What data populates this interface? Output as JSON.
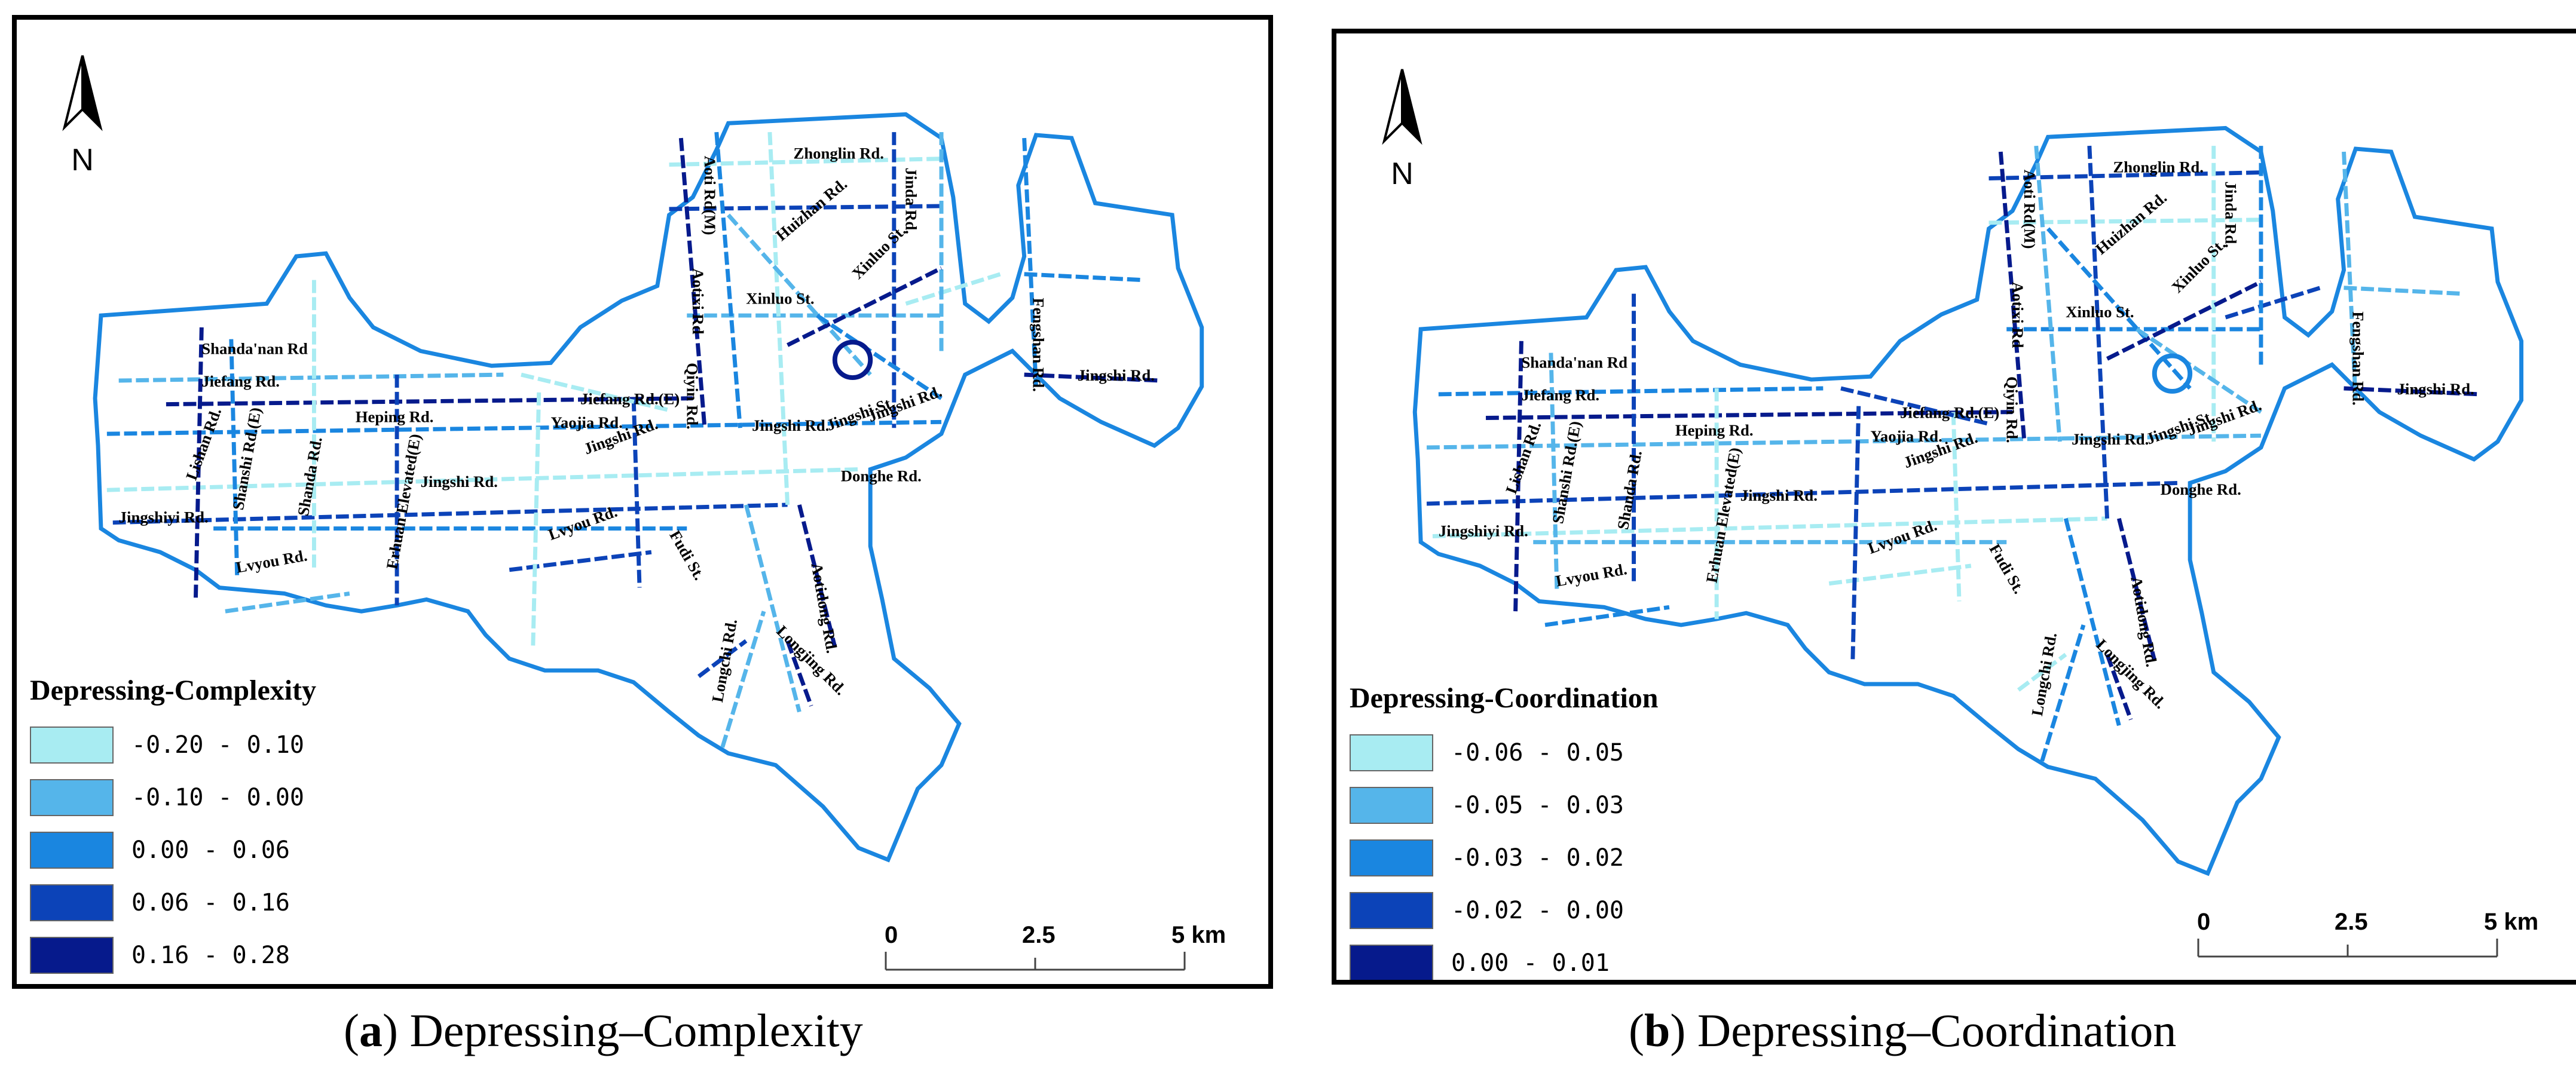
{
  "panels": [
    {
      "id": "a",
      "legend_title": "Depressing-Complexity",
      "classes": [
        {
          "label": "-0.20 - 0.10",
          "color": "#a8ecf2"
        },
        {
          "label": "-0.10 - 0.00",
          "color": "#55b5ea"
        },
        {
          "label": "0.00 - 0.06",
          "color": "#1a86e0"
        },
        {
          "label": "0.06 - 0.16",
          "color": "#0c43b8"
        },
        {
          "label": "0.16 - 0.28",
          "color": "#061a8c"
        }
      ],
      "caption_letter": "a",
      "caption_text": "Depressing–Complexity"
    },
    {
      "id": "b",
      "legend_title": "Depressing-Coordination",
      "classes": [
        {
          "label": "-0.06 - 0.05",
          "color": "#a8ecf2"
        },
        {
          "label": "-0.05 - 0.03",
          "color": "#55b5ea"
        },
        {
          "label": "-0.03 - 0.02",
          "color": "#1a86e0"
        },
        {
          "label": "-0.02 - 0.00",
          "color": "#0c43b8"
        },
        {
          "label": "0.00 - 0.01",
          "color": "#061a8c"
        }
      ],
      "caption_letter": "b",
      "caption_text": "Depressing–Coordination"
    }
  ],
  "north_label": "N",
  "north_icon": "north-arrow-icon",
  "scale": {
    "ticks": [
      "0",
      "2.5",
      "5 km"
    ]
  },
  "boundary_color": "#1a86e0",
  "road_labels": [
    "Zhonglin Rd.",
    "Jinda Rd.",
    "Aotixi Rd",
    "Aoti Rd(M)",
    "Huizhan Rd.",
    "Fengshan Rd.",
    "Xinluo St.",
    "Xinluo St.",
    "Qiyin Rd.",
    "Shanda'nan Rd",
    "Jiefang Rd.",
    "Jiefang Rd.(E)",
    "Heping Rd.",
    "Yaojia Rd.",
    "Jingshi Rd.",
    "Jingshi Rd.",
    "Jingshi Rd.",
    "Jingshi Rd.",
    "Jingshi Rd.",
    "Lishan Rd.",
    "Shanshi Rd.(E)",
    "Shanda Rd.",
    "Jingshiyi Rd.",
    "Erhuan Elevated(E)",
    "Lvyou Rd.",
    "Lvyou Rd.",
    "Fudi St.",
    "Donghe Rd.",
    "Aotidong Rd.",
    "Longjing Rd.",
    "Longchi Rd.",
    "Jingshi St."
  ]
}
